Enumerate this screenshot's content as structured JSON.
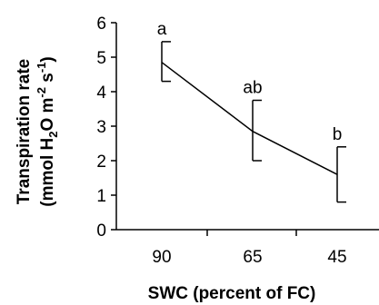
{
  "chart_data": {
    "type": "line",
    "categories": [
      "90",
      "65",
      "45"
    ],
    "values": [
      4.85,
      2.85,
      1.6
    ],
    "error_low": [
      4.3,
      2.0,
      0.8
    ],
    "error_high": [
      5.45,
      3.75,
      2.4
    ],
    "letters": [
      "a",
      "ab",
      "b"
    ],
    "xlabel": "SWC (percent of FC)",
    "ylabel_line1": "Transpiration rate",
    "ylabel_line2": {
      "open": "(mmol H",
      "sub2": "2",
      "o": "O m",
      "sup_neg2": "-2",
      "s": " s",
      "sup_neg1": "-1",
      "close": ")"
    },
    "ylim": [
      0,
      6
    ],
    "yticks": [
      "0",
      "1",
      "2",
      "3",
      "4",
      "5",
      "6"
    ],
    "grid": false,
    "line_color": "#000000"
  }
}
